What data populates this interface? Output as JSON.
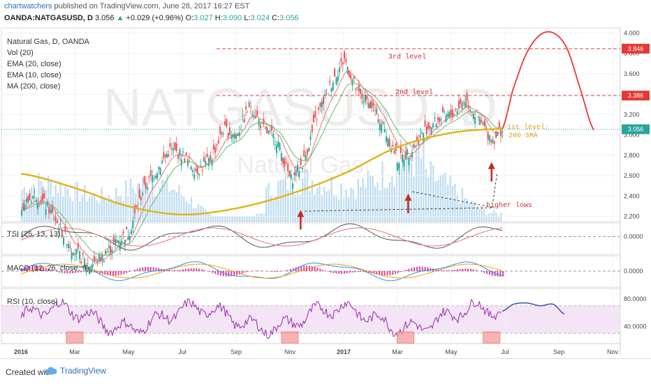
{
  "header": {
    "author": "chartwatchers",
    "published": "published on TradingView.com, June 28, 2017 16:27 EST",
    "symbol": "OANDA:NATGASUSD, D",
    "last": "3.056",
    "change_arrow": "▲",
    "change": "+0.029 (+0.96%)",
    "o_label": "O:",
    "o": "3.027",
    "h_label": "H:",
    "h": "3.090",
    "l_label": "L:",
    "l": "3.024",
    "c_label": "C:",
    "c": "3.056"
  },
  "watermark": {
    "symbol": "NATGASUSD, D",
    "name": "Natural Gas"
  },
  "legend": [
    "Natural Gas, D, OANDA",
    "Vol (20)",
    "EMA (20, close)",
    "EMA (10, close)",
    "MA (200, close)"
  ],
  "panes": {
    "tsi": "TSI (25, 13, 13)",
    "macd": "MACD (12, 26, close, 9)",
    "rsi": "RSI (10, close)"
  },
  "annotations": {
    "third_level": "3rd level",
    "second_level": "2nd level",
    "first_level_1": "1st level:",
    "first_level_2": "200 SMA",
    "higher_lows": "higher lows"
  },
  "footer": {
    "created_with": "Created with",
    "brand": "TradingView"
  },
  "colors": {
    "up": "#26a69a",
    "down": "#ef5350",
    "ma200": "#e0b420",
    "level": "#e04040",
    "volume": "#8ec3e8",
    "rsi": "#9c27b0"
  },
  "chart_data": [
    {
      "type": "candlestick",
      "title": "Natural Gas, D, OANDA",
      "x_ticks": [
        "2016",
        "Mar",
        "May",
        "Jul",
        "Sep",
        "Nov",
        "2017",
        "Mar",
        "May",
        "Jul",
        "Sep",
        "Nov"
      ],
      "x_tick_month_index": [
        0,
        2,
        4,
        6,
        8,
        10,
        12,
        14,
        16,
        18,
        20,
        22
      ],
      "ylim": [
        2.15,
        4.05
      ],
      "y_ticks": [
        2.2,
        2.4,
        2.6,
        2.8,
        3.0,
        3.2,
        3.4,
        3.6,
        3.8,
        4.0
      ],
      "y_tick_labels": [
        "2.200",
        "2.400",
        "2.600",
        "2.800",
        "3.000",
        "3.200",
        "3.400",
        "3.600",
        "3.800",
        "4.000"
      ],
      "price_tags": [
        {
          "label": "3.846",
          "value": 3.846
        },
        {
          "label": "3.386",
          "value": 3.386
        },
        {
          "label": "3.056",
          "value": 3.056
        }
      ],
      "levels": [
        3.846,
        3.386
      ],
      "close_path_month_index": [
        0,
        0.5,
        1,
        1.5,
        2,
        2.5,
        3,
        3.5,
        4,
        4.5,
        5,
        5.5,
        6,
        6.5,
        7,
        7.5,
        8,
        8.5,
        9,
        9.5,
        10,
        10.5,
        11,
        11.5,
        12,
        12.5,
        13,
        13.5,
        14,
        14.5,
        15,
        15.5,
        16,
        16.5,
        17,
        17.5,
        17.9
      ],
      "close_path_values": [
        2.3,
        2.42,
        2.28,
        2.05,
        1.85,
        1.72,
        1.8,
        1.95,
        2.05,
        2.45,
        2.65,
        2.85,
        2.8,
        2.65,
        2.75,
        3.05,
        3.0,
        3.3,
        3.05,
        2.95,
        2.55,
        2.75,
        3.2,
        3.5,
        3.75,
        3.4,
        3.3,
        3.05,
        2.75,
        2.85,
        3.05,
        3.15,
        3.2,
        3.35,
        3.15,
        2.95,
        3.056
      ],
      "ma200_month_index": [
        0,
        2,
        4,
        6,
        8,
        10,
        12,
        14,
        16,
        17.9
      ],
      "ma200_values": [
        2.62,
        2.48,
        2.3,
        2.22,
        2.28,
        2.42,
        2.62,
        2.88,
        3.02,
        3.06
      ],
      "projection_month_index": [
        17.9,
        18.3,
        18.8,
        19.3,
        19.8,
        20.3,
        20.8,
        21.3
      ],
      "projection_values": [
        3.06,
        3.45,
        3.8,
        3.98,
        4.0,
        3.85,
        3.45,
        3.05
      ],
      "higher_lows": [
        {
          "x": 10.4,
          "value": 2.25
        },
        {
          "x": 14.4,
          "value": 2.41
        },
        {
          "x": 17.5,
          "value": 2.72
        }
      ]
    },
    {
      "type": "line",
      "title": "TSI (25, 13, 13)",
      "y_ticks": [
        0
      ],
      "y_tick_labels": [
        "0.0000"
      ]
    },
    {
      "type": "bar",
      "title": "MACD (12, 26, close, 9)",
      "y_ticks": [
        0
      ],
      "y_tick_labels": [
        "0.0000"
      ]
    },
    {
      "type": "line",
      "title": "RSI (10, close)",
      "ylim": [
        15,
        95
      ],
      "y_ticks": [
        80,
        40
      ],
      "y_tick_labels": [
        "80.0000",
        "40.0000"
      ],
      "band": [
        30,
        70
      ],
      "oversold_marks_month_index": [
        2.0,
        10.0,
        14.3,
        17.5
      ],
      "projection_month_index": [
        17.9,
        18.3,
        18.8,
        19.3,
        19.8,
        20.2
      ],
      "projection_values": [
        62,
        72,
        74,
        70,
        72,
        58
      ]
    }
  ]
}
